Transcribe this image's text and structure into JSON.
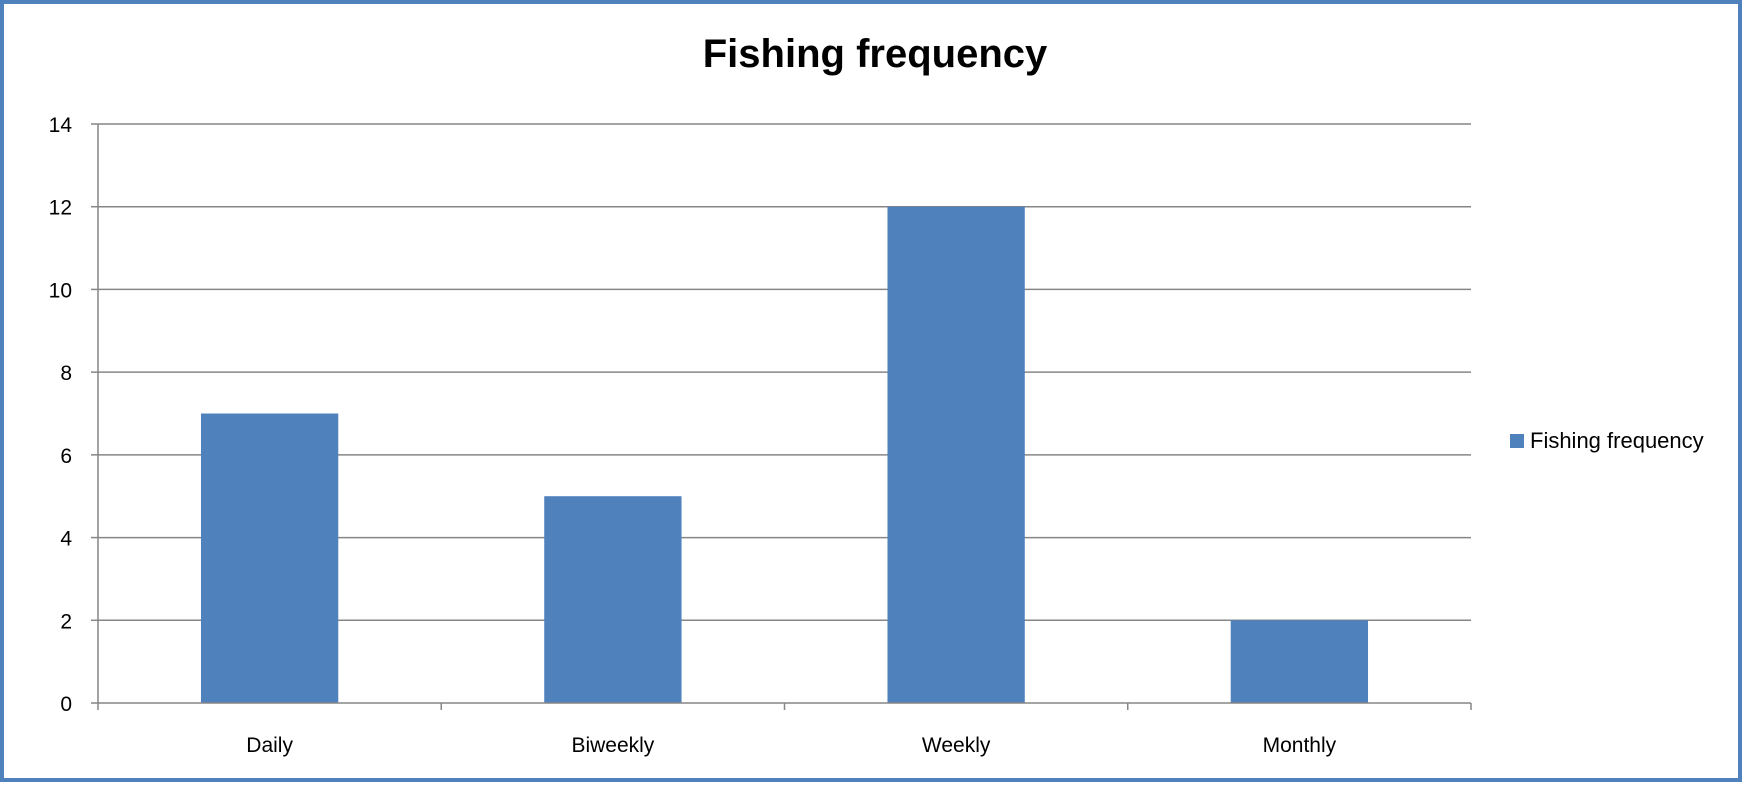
{
  "chart_data": {
    "type": "bar",
    "title": "Fishing frequency",
    "xlabel": "",
    "ylabel": "",
    "categories": [
      "Daily",
      "Biweekly",
      "Weekly",
      "Monthly"
    ],
    "series": [
      {
        "name": "Fishing frequency",
        "values": [
          7,
          5,
          12,
          2
        ],
        "color": "#4f81bd"
      }
    ],
    "ylim": [
      0,
      14
    ],
    "yticks": [
      0,
      2,
      4,
      6,
      8,
      10,
      12,
      14
    ],
    "grid": true,
    "legend_position": "right",
    "border_color": "#4f81bd"
  }
}
